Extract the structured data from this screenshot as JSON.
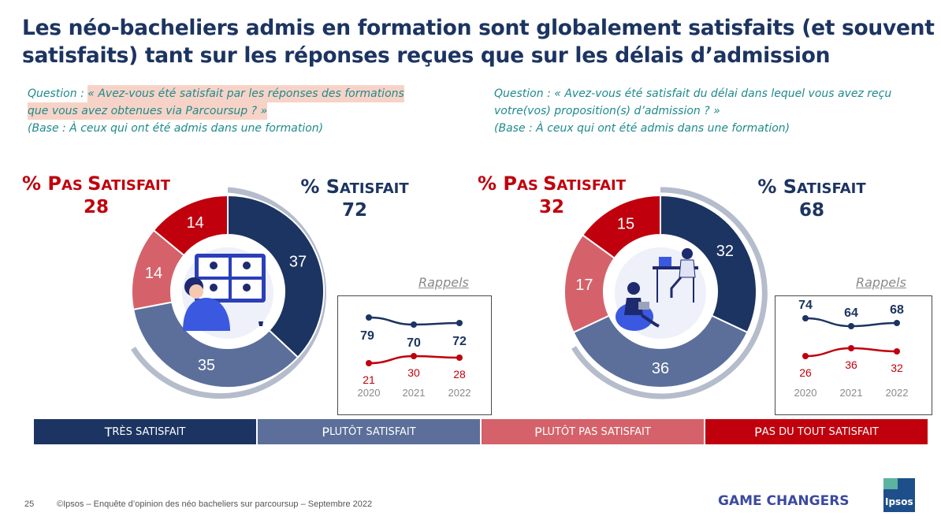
{
  "title": {
    "line1": "Les néo-bacheliers admis en formation sont globalement satisfaits (et souvent très",
    "line2": "satisfaits) tant sur les réponses reçues que sur les délais d’admission"
  },
  "left": {
    "question": {
      "prefix": "Question : ",
      "line1": "« Avez-vous été satisfait par les réponses des formations",
      "line2": "que vous avez obtenues via Parcoursup ? »",
      "base": "(Base : À ceux qui ont été admis dans une formation)"
    },
    "not_satisfied": {
      "pct": "% ",
      "w1_cap": "P",
      "w1_rest": "AS ",
      "w2_cap": "S",
      "w2_rest": "ATISFAIT",
      "value": "28"
    },
    "satisfied": {
      "pct": "% ",
      "w1_cap": "S",
      "w1_rest": "ATISFAIT",
      "value": "72"
    },
    "rappels": "Rappels"
  },
  "right": {
    "question": {
      "prefix": "Question : ",
      "line1": "« Avez-vous été satisfait du délai dans lequel vous avez reçu",
      "line2": "votre(vos) proposition(s) d’admission ? »",
      "base": "(Base : À ceux qui ont été admis dans une formation)"
    },
    "not_satisfied": {
      "pct": "% ",
      "w1_cap": "P",
      "w1_rest": "AS ",
      "w2_cap": "S",
      "w2_rest": "ATISFAIT",
      "value": "32"
    },
    "satisfied": {
      "pct": "% ",
      "w1_cap": "S",
      "w1_rest": "ATISFAIT",
      "value": "68"
    },
    "rappels": "Rappels"
  },
  "legend": {
    "items": [
      {
        "cap": "T",
        "rest": "RÈS SATISFAIT",
        "color": "#1c3461"
      },
      {
        "cap": "P",
        "rest": "LUTÔT SATISFAIT",
        "color": "#5b6f9a"
      },
      {
        "cap": "P",
        "rest": "LUTÔT PAS SATISFAIT",
        "color": "#d5626a"
      },
      {
        "cap": "P",
        "rest": "AS DU TOUT SATISFAIT",
        "color": "#c0000c"
      }
    ]
  },
  "footer": {
    "page": "25",
    "text": "©Ipsos – Enquête d’opinion des néo bacheliers sur parcoursup – Septembre 2022",
    "brand": "GAME CHANGERS",
    "logo": "Ipsos"
  },
  "chart_data": [
    {
      "type": "pie",
      "variant": "donut",
      "categories": [
        "Très satisfait",
        "Plutôt satisfait",
        "Plutôt pas satisfait",
        "Pas du tout satisfait"
      ],
      "values": [
        37,
        35,
        14,
        14
      ],
      "colors": [
        "#1c3461",
        "#5b6f9a",
        "#d5626a",
        "#c0000c"
      ]
    },
    {
      "type": "line",
      "x": [
        "2020",
        "2021",
        "2022"
      ],
      "series": [
        {
          "values": [
            79,
            70,
            72
          ],
          "color": "#1c3461"
        },
        {
          "values": [
            21,
            30,
            28
          ],
          "color": "#c0000c"
        }
      ]
    },
    {
      "type": "pie",
      "variant": "donut",
      "categories": [
        "Très satisfait",
        "Plutôt satisfait",
        "Plutôt pas satisfait",
        "Pas du tout satisfait"
      ],
      "values": [
        32,
        36,
        17,
        15
      ],
      "colors": [
        "#1c3461",
        "#5b6f9a",
        "#d5626a",
        "#c0000c"
      ]
    },
    {
      "type": "line",
      "x": [
        "2020",
        "2021",
        "2022"
      ],
      "series": [
        {
          "values": [
            74,
            64,
            68
          ],
          "color": "#1c3461"
        },
        {
          "values": [
            26,
            36,
            32
          ],
          "color": "#c0000c"
        }
      ]
    }
  ]
}
